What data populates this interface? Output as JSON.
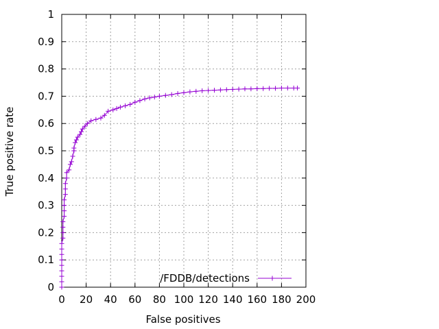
{
  "chart_data": {
    "type": "line",
    "xlabel": "False positives",
    "ylabel": "True positive rate",
    "xlim": [
      0,
      200
    ],
    "ylim": [
      0,
      1
    ],
    "x_ticks": [
      "0",
      "20",
      "40",
      "60",
      "80",
      "100",
      "120",
      "140",
      "160",
      "180",
      "200"
    ],
    "y_ticks": [
      "0",
      "0.1",
      "0.2",
      "0.3",
      "0.4",
      "0.5",
      "0.6",
      "0.7",
      "0.8",
      "0.9",
      "1"
    ],
    "grid": true,
    "legend_position": "bottom-right",
    "series": [
      {
        "name": "/FDDB/detections",
        "color": "#9400d3",
        "marker": "plus",
        "points": [
          [
            0,
            0.0
          ],
          [
            0,
            0.02
          ],
          [
            0,
            0.04
          ],
          [
            0,
            0.06
          ],
          [
            0,
            0.08
          ],
          [
            0,
            0.1
          ],
          [
            0,
            0.12
          ],
          [
            0,
            0.14
          ],
          [
            0,
            0.16
          ],
          [
            1,
            0.18
          ],
          [
            1,
            0.2
          ],
          [
            1,
            0.22
          ],
          [
            1,
            0.24
          ],
          [
            2,
            0.26
          ],
          [
            2,
            0.28
          ],
          [
            2,
            0.3
          ],
          [
            2,
            0.32
          ],
          [
            3,
            0.34
          ],
          [
            3,
            0.36
          ],
          [
            3,
            0.38
          ],
          [
            4,
            0.4
          ],
          [
            4,
            0.42
          ],
          [
            6,
            0.43
          ],
          [
            7,
            0.45
          ],
          [
            8,
            0.46
          ],
          [
            9,
            0.48
          ],
          [
            10,
            0.5
          ],
          [
            10,
            0.51
          ],
          [
            11,
            0.53
          ],
          [
            12,
            0.54
          ],
          [
            13,
            0.55
          ],
          [
            15,
            0.56
          ],
          [
            16,
            0.57
          ],
          [
            17,
            0.58
          ],
          [
            19,
            0.59
          ],
          [
            21,
            0.6
          ],
          [
            24,
            0.61
          ],
          [
            28,
            0.615
          ],
          [
            32,
            0.62
          ],
          [
            35,
            0.63
          ],
          [
            38,
            0.645
          ],
          [
            42,
            0.65
          ],
          [
            45,
            0.655
          ],
          [
            48,
            0.66
          ],
          [
            52,
            0.665
          ],
          [
            56,
            0.67
          ],
          [
            60,
            0.678
          ],
          [
            64,
            0.684
          ],
          [
            68,
            0.69
          ],
          [
            72,
            0.694
          ],
          [
            76,
            0.697
          ],
          [
            80,
            0.7
          ],
          [
            85,
            0.703
          ],
          [
            90,
            0.706
          ],
          [
            95,
            0.71
          ],
          [
            100,
            0.713
          ],
          [
            105,
            0.716
          ],
          [
            110,
            0.718
          ],
          [
            115,
            0.72
          ],
          [
            120,
            0.721
          ],
          [
            125,
            0.722
          ],
          [
            130,
            0.723
          ],
          [
            135,
            0.724
          ],
          [
            140,
            0.725
          ],
          [
            145,
            0.726
          ],
          [
            150,
            0.727
          ],
          [
            155,
            0.727
          ],
          [
            160,
            0.728
          ],
          [
            165,
            0.728
          ],
          [
            170,
            0.729
          ],
          [
            175,
            0.729
          ],
          [
            180,
            0.73
          ],
          [
            185,
            0.73
          ],
          [
            190,
            0.73
          ],
          [
            193,
            0.73
          ]
        ]
      }
    ]
  }
}
